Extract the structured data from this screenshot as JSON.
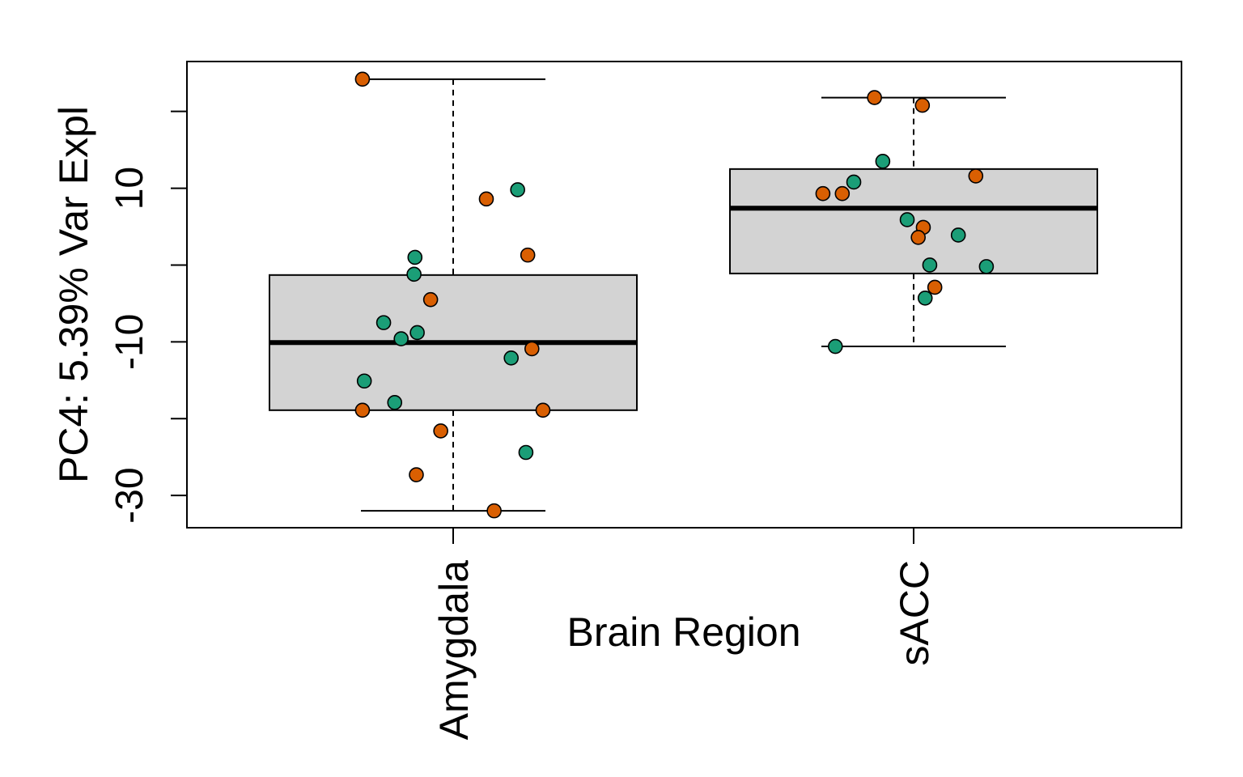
{
  "chart_data": {
    "type": "box",
    "xlabel": "Brain Region",
    "ylabel": "PC4: 5.39% Var Expl",
    "ylim": [
      -34.2,
      26.5
    ],
    "yticks": [
      -30,
      -20,
      -10,
      0,
      10,
      20
    ],
    "ytick_labels": [
      "-30",
      "",
      "-10",
      "",
      "10",
      ""
    ],
    "categories": [
      "Amygdala",
      "sACC"
    ],
    "box_fill": "#d3d3d3",
    "point_colors": [
      "#d95f02",
      "#1b9e77"
    ],
    "boxes": [
      {
        "category": "Amygdala",
        "min": -32.0,
        "q1": -18.9,
        "median": -10.1,
        "q3": -1.3,
        "max": 24.2
      },
      {
        "category": "sACC",
        "min": -10.6,
        "q1": -1.1,
        "median": 7.4,
        "q3": 12.5,
        "max": 21.8
      }
    ],
    "points": [
      {
        "category": "Amygdala",
        "x_offset": -0.197,
        "y": 24.2,
        "group": 0
      },
      {
        "category": "Amygdala",
        "x_offset": 0.072,
        "y": 8.6,
        "group": 0
      },
      {
        "category": "Amygdala",
        "x_offset": 0.14,
        "y": 9.8,
        "group": 1
      },
      {
        "category": "Amygdala",
        "x_offset": 0.162,
        "y": 1.3,
        "group": 0
      },
      {
        "category": "Amygdala",
        "x_offset": -0.083,
        "y": 1.0,
        "group": 1
      },
      {
        "category": "Amygdala",
        "x_offset": -0.085,
        "y": -1.2,
        "group": 1
      },
      {
        "category": "Amygdala",
        "x_offset": -0.049,
        "y": -4.5,
        "group": 0
      },
      {
        "category": "Amygdala",
        "x_offset": -0.151,
        "y": -7.5,
        "group": 1
      },
      {
        "category": "Amygdala",
        "x_offset": -0.078,
        "y": -8.8,
        "group": 1
      },
      {
        "category": "Amygdala",
        "x_offset": -0.113,
        "y": -9.6,
        "group": 1
      },
      {
        "category": "Amygdala",
        "x_offset": 0.171,
        "y": -10.9,
        "group": 0
      },
      {
        "category": "Amygdala",
        "x_offset": 0.126,
        "y": -12.1,
        "group": 1
      },
      {
        "category": "Amygdala",
        "x_offset": -0.193,
        "y": -15.1,
        "group": 1
      },
      {
        "category": "Amygdala",
        "x_offset": -0.127,
        "y": -17.9,
        "group": 1
      },
      {
        "category": "Amygdala",
        "x_offset": -0.197,
        "y": -18.9,
        "group": 0
      },
      {
        "category": "Amygdala",
        "x_offset": 0.195,
        "y": -18.9,
        "group": 0
      },
      {
        "category": "Amygdala",
        "x_offset": -0.027,
        "y": -21.6,
        "group": 0
      },
      {
        "category": "Amygdala",
        "x_offset": 0.158,
        "y": -24.4,
        "group": 1
      },
      {
        "category": "Amygdala",
        "x_offset": -0.08,
        "y": -27.3,
        "group": 0
      },
      {
        "category": "Amygdala",
        "x_offset": 0.089,
        "y": -32.0,
        "group": 0
      },
      {
        "category": "sACC",
        "x_offset": -0.085,
        "y": 21.8,
        "group": 0
      },
      {
        "category": "sACC",
        "x_offset": 0.019,
        "y": 20.8,
        "group": 0
      },
      {
        "category": "sACC",
        "x_offset": -0.067,
        "y": 13.5,
        "group": 1
      },
      {
        "category": "sACC",
        "x_offset": 0.135,
        "y": 11.6,
        "group": 0
      },
      {
        "category": "sACC",
        "x_offset": -0.13,
        "y": 10.8,
        "group": 1
      },
      {
        "category": "sACC",
        "x_offset": -0.197,
        "y": 9.3,
        "group": 0
      },
      {
        "category": "sACC",
        "x_offset": -0.155,
        "y": 9.3,
        "group": 0
      },
      {
        "category": "sACC",
        "x_offset": -0.014,
        "y": 5.9,
        "group": 1
      },
      {
        "category": "sACC",
        "x_offset": 0.021,
        "y": 4.9,
        "group": 0
      },
      {
        "category": "sACC",
        "x_offset": 0.097,
        "y": 3.9,
        "group": 1
      },
      {
        "category": "sACC",
        "x_offset": 0.01,
        "y": 3.6,
        "group": 0
      },
      {
        "category": "sACC",
        "x_offset": 0.035,
        "y": 0.0,
        "group": 1
      },
      {
        "category": "sACC",
        "x_offset": 0.158,
        "y": -0.2,
        "group": 1
      },
      {
        "category": "sACC",
        "x_offset": 0.046,
        "y": -2.9,
        "group": 0
      },
      {
        "category": "sACC",
        "x_offset": 0.025,
        "y": -4.3,
        "group": 1
      },
      {
        "category": "sACC",
        "x_offset": -0.17,
        "y": -10.6,
        "group": 1
      }
    ]
  }
}
